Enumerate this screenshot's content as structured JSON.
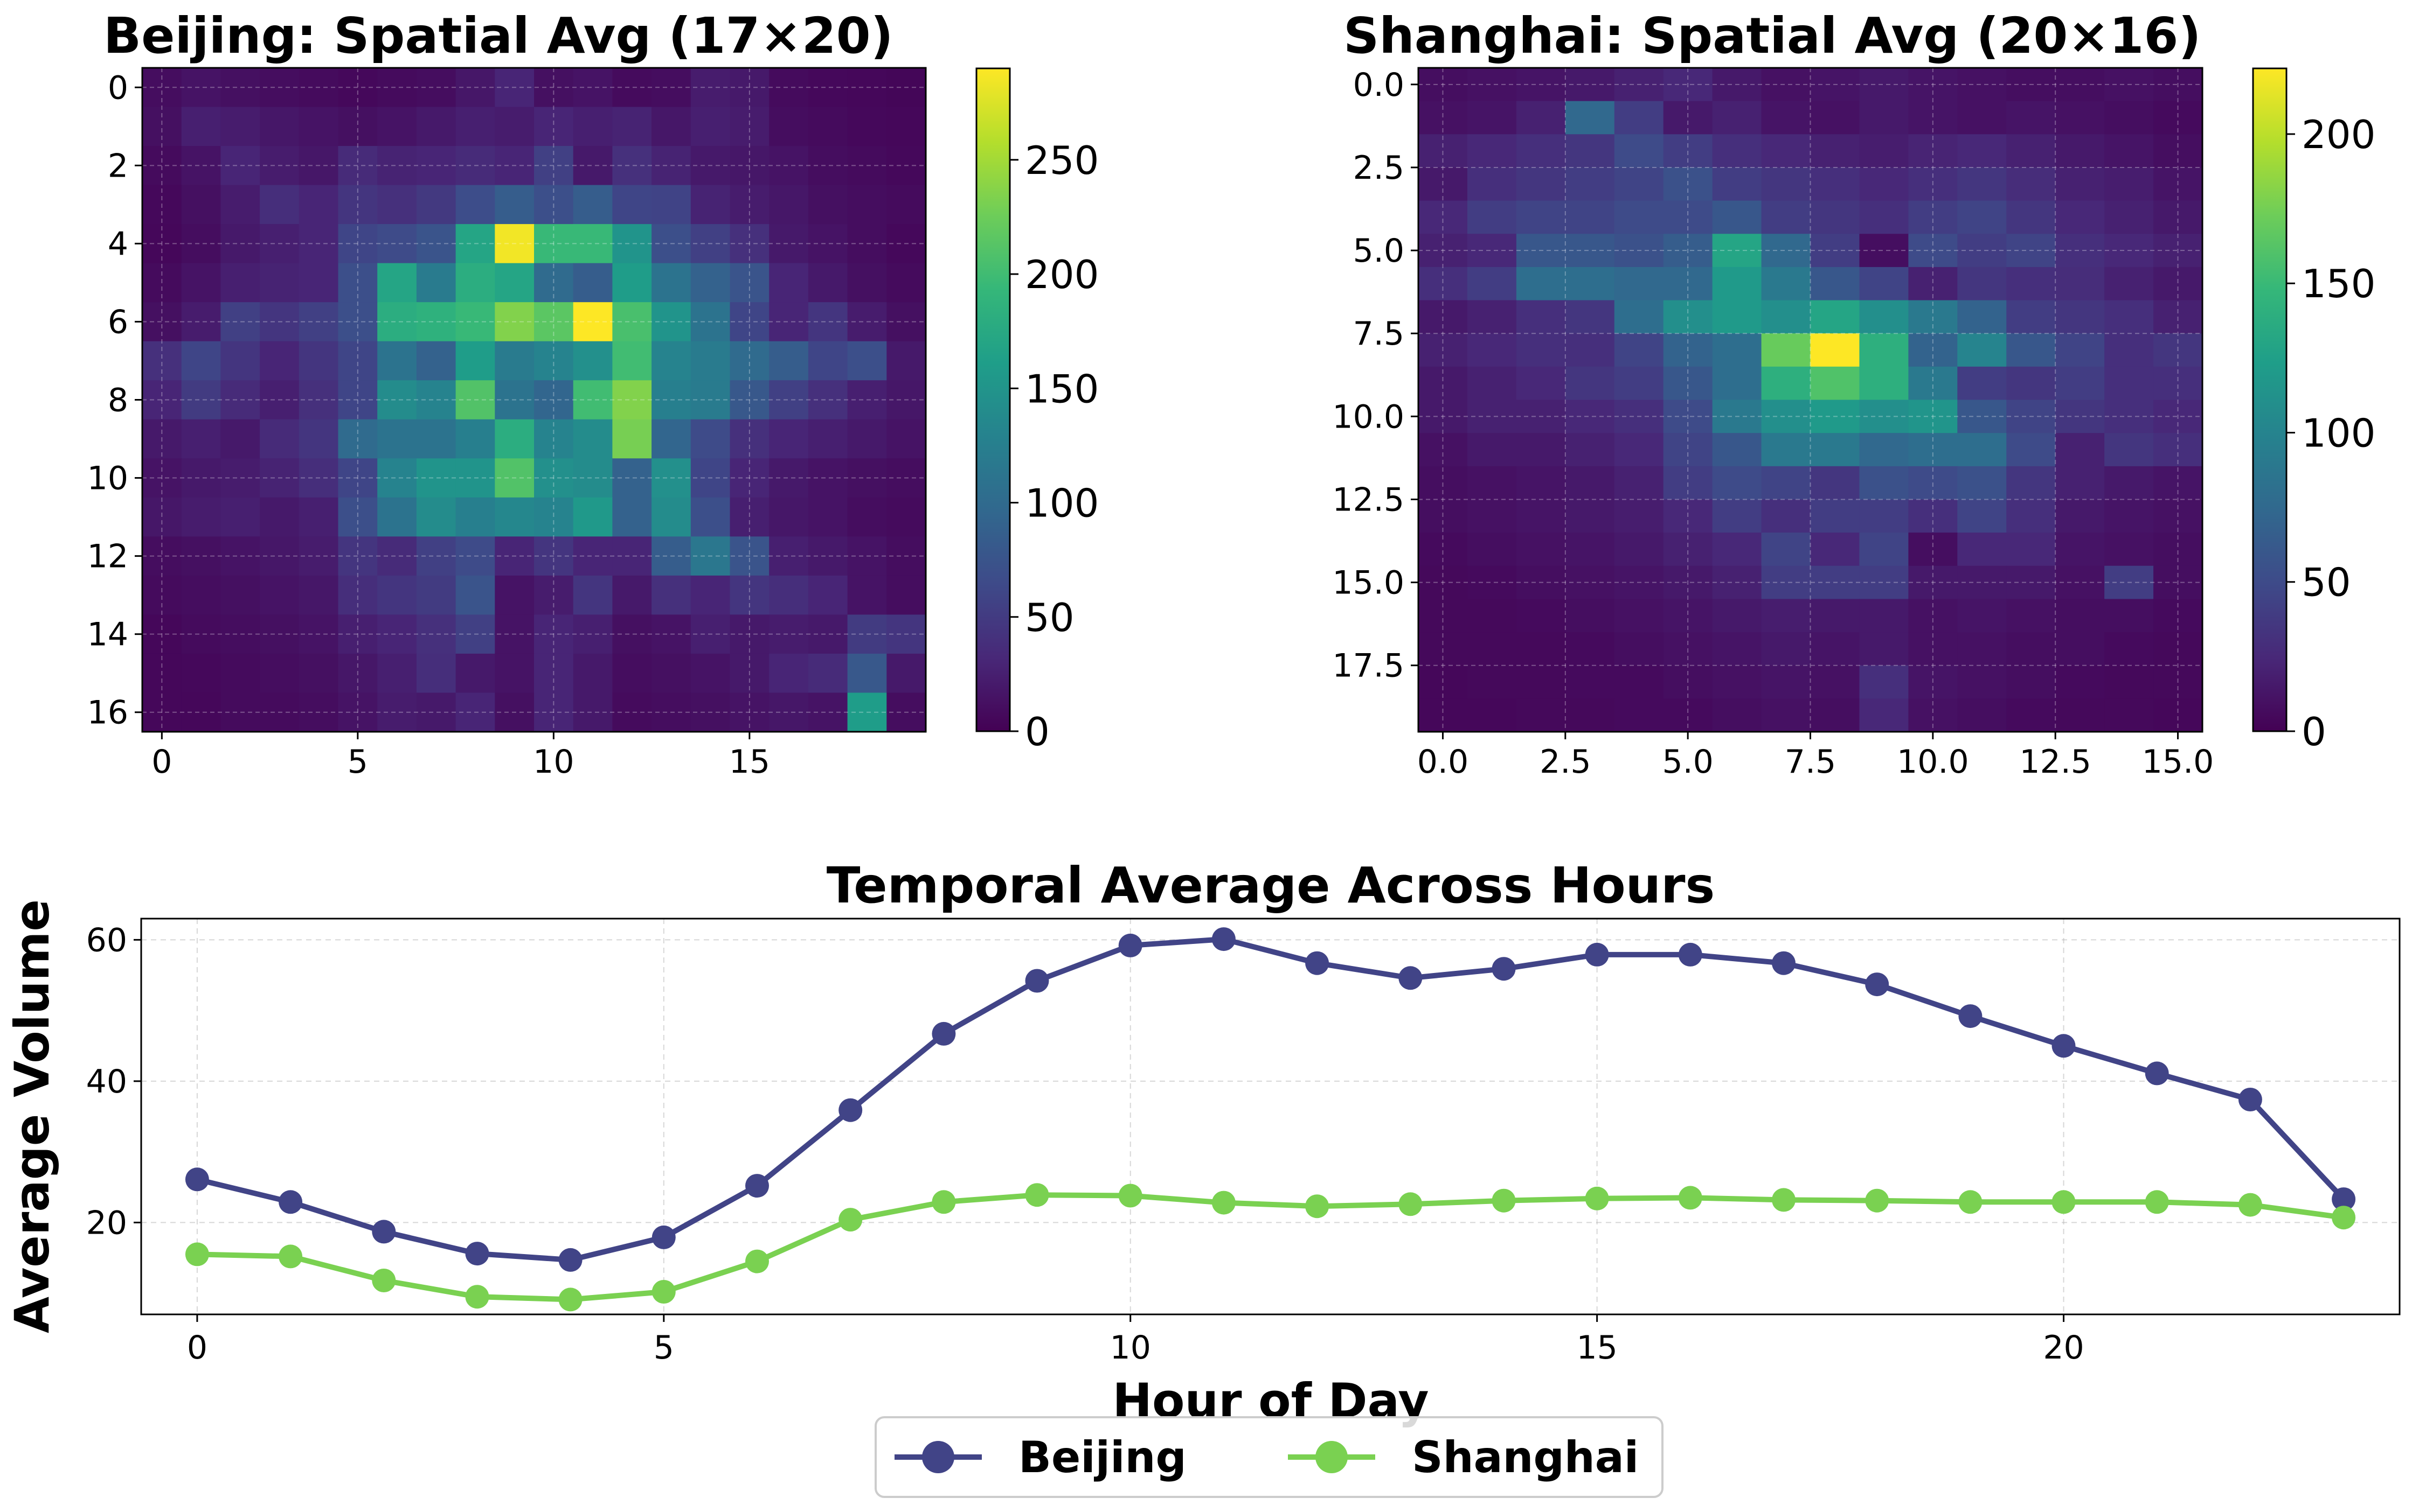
{
  "chart_data": [
    {
      "type": "heatmap",
      "title": "Beijing: Spatial Avg (17×20)",
      "rows": 17,
      "cols": 20,
      "colormap": "viridis",
      "vmin": 0,
      "vmax": 290,
      "xticks": [
        0,
        5,
        10,
        15
      ],
      "xtick_labels": [
        "0",
        "5",
        "10",
        "15"
      ],
      "yticks": [
        0,
        2,
        4,
        6,
        8,
        10,
        12,
        14,
        16
      ],
      "ytick_labels": [
        "0",
        "2",
        "4",
        "6",
        "8",
        "10",
        "12",
        "14",
        "16"
      ],
      "colorbar_ticks": [
        0,
        50,
        100,
        150,
        200,
        250
      ],
      "colorbar_labels": [
        "0",
        "50",
        "100",
        "150",
        "200",
        "250"
      ],
      "grid": true,
      "values": [
        [
          10,
          15,
          12,
          10,
          8,
          6,
          8,
          10,
          18,
          30,
          12,
          15,
          8,
          10,
          22,
          20,
          8,
          6,
          5,
          4
        ],
        [
          12,
          25,
          22,
          18,
          15,
          12,
          15,
          20,
          25,
          22,
          30,
          25,
          28,
          18,
          25,
          22,
          10,
          8,
          6,
          5
        ],
        [
          8,
          15,
          30,
          22,
          18,
          35,
          28,
          30,
          35,
          30,
          55,
          20,
          40,
          28,
          20,
          18,
          15,
          10,
          8,
          6
        ],
        [
          6,
          12,
          22,
          38,
          30,
          45,
          40,
          48,
          68,
          85,
          70,
          85,
          60,
          58,
          28,
          22,
          18,
          12,
          10,
          8
        ],
        [
          5,
          10,
          20,
          25,
          30,
          60,
          65,
          75,
          170,
          285,
          195,
          195,
          150,
          70,
          55,
          40,
          20,
          15,
          10,
          6
        ],
        [
          8,
          15,
          25,
          28,
          30,
          70,
          170,
          120,
          180,
          170,
          100,
          85,
          160,
          110,
          90,
          75,
          30,
          20,
          12,
          8
        ],
        [
          12,
          22,
          55,
          45,
          55,
          70,
          180,
          185,
          195,
          235,
          215,
          290,
          205,
          150,
          110,
          60,
          30,
          45,
          22,
          12
        ],
        [
          40,
          60,
          45,
          30,
          45,
          60,
          110,
          90,
          160,
          120,
          130,
          145,
          200,
          130,
          120,
          100,
          85,
          60,
          70,
          20
        ],
        [
          30,
          50,
          35,
          25,
          40,
          60,
          140,
          130,
          210,
          110,
          95,
          200,
          235,
          125,
          120,
          80,
          55,
          40,
          25,
          18
        ],
        [
          20,
          25,
          20,
          35,
          45,
          100,
          110,
          110,
          125,
          180,
          130,
          140,
          230,
          95,
          65,
          40,
          30,
          25,
          20,
          15
        ],
        [
          15,
          20,
          22,
          28,
          38,
          60,
          130,
          150,
          150,
          210,
          145,
          140,
          90,
          145,
          60,
          30,
          20,
          15,
          12,
          10
        ],
        [
          18,
          22,
          25,
          20,
          25,
          70,
          110,
          140,
          125,
          135,
          130,
          155,
          90,
          140,
          70,
          25,
          18,
          15,
          10,
          8
        ],
        [
          10,
          12,
          15,
          18,
          22,
          45,
          35,
          55,
          65,
          30,
          45,
          30,
          30,
          85,
          115,
          75,
          25,
          20,
          15,
          10
        ],
        [
          8,
          10,
          12,
          15,
          18,
          38,
          45,
          50,
          75,
          15,
          22,
          45,
          20,
          40,
          30,
          45,
          38,
          30,
          15,
          10
        ],
        [
          5,
          8,
          10,
          12,
          15,
          25,
          30,
          40,
          55,
          15,
          30,
          25,
          12,
          15,
          25,
          20,
          22,
          20,
          50,
          45
        ],
        [
          5,
          6,
          8,
          10,
          12,
          18,
          25,
          38,
          20,
          15,
          30,
          20,
          10,
          12,
          15,
          20,
          30,
          35,
          80,
          20
        ],
        [
          5,
          5,
          8,
          8,
          10,
          15,
          22,
          20,
          30,
          12,
          30,
          20,
          8,
          10,
          12,
          15,
          18,
          15,
          160,
          10
        ]
      ]
    },
    {
      "type": "heatmap",
      "title": "Shanghai: Spatial Avg (20×16)",
      "rows": 20,
      "cols": 16,
      "colormap": "viridis",
      "vmin": 0,
      "vmax": 222,
      "xticks": [
        0,
        2.5,
        5,
        7.5,
        10,
        12.5,
        15
      ],
      "xtick_labels": [
        "0.0",
        "2.5",
        "5.0",
        "7.5",
        "10.0",
        "12.5",
        "15.0"
      ],
      "yticks": [
        0,
        2.5,
        5,
        7.5,
        10,
        12.5,
        15,
        17.5
      ],
      "ytick_labels": [
        "0.0",
        "2.5",
        "5.0",
        "7.5",
        "10.0",
        "12.5",
        "15.0",
        "17.5"
      ],
      "colorbar_ticks": [
        0,
        50,
        100,
        150,
        200
      ],
      "colorbar_labels": [
        "0",
        "50",
        "100",
        "150",
        "200"
      ],
      "grid": true,
      "values": [
        [
          8,
          10,
          12,
          15,
          20,
          25,
          15,
          10,
          12,
          15,
          12,
          10,
          8,
          8,
          10,
          8
        ],
        [
          10,
          12,
          20,
          75,
          40,
          15,
          20,
          12,
          10,
          15,
          12,
          10,
          12,
          10,
          8,
          6
        ],
        [
          20,
          25,
          30,
          35,
          50,
          40,
          30,
          25,
          20,
          18,
          22,
          25,
          20,
          15,
          12,
          8
        ],
        [
          15,
          30,
          35,
          40,
          45,
          55,
          40,
          35,
          30,
          25,
          30,
          35,
          28,
          20,
          18,
          12
        ],
        [
          25,
          40,
          45,
          45,
          50,
          50,
          60,
          40,
          35,
          30,
          40,
          45,
          35,
          25,
          20,
          15
        ],
        [
          20,
          25,
          60,
          60,
          55,
          65,
          130,
          75,
          40,
          8,
          50,
          40,
          45,
          30,
          25,
          20
        ],
        [
          30,
          40,
          80,
          80,
          75,
          75,
          120,
          90,
          60,
          45,
          20,
          35,
          30,
          28,
          20,
          15
        ],
        [
          15,
          20,
          30,
          35,
          80,
          110,
          120,
          110,
          130,
          110,
          90,
          70,
          40,
          35,
          30,
          20
        ],
        [
          20,
          25,
          30,
          30,
          45,
          70,
          80,
          170,
          222,
          140,
          70,
          100,
          60,
          45,
          30,
          35
        ],
        [
          15,
          20,
          25,
          35,
          40,
          60,
          80,
          140,
          160,
          140,
          90,
          40,
          35,
          40,
          30,
          30
        ],
        [
          15,
          20,
          20,
          25,
          30,
          50,
          90,
          110,
          120,
          110,
          115,
          60,
          45,
          35,
          30,
          25
        ],
        [
          10,
          15,
          15,
          20,
          25,
          45,
          60,
          90,
          90,
          75,
          80,
          80,
          50,
          20,
          35,
          30
        ],
        [
          8,
          10,
          12,
          15,
          20,
          40,
          50,
          45,
          35,
          55,
          50,
          55,
          35,
          20,
          15,
          12
        ],
        [
          8,
          10,
          12,
          15,
          18,
          25,
          40,
          30,
          40,
          40,
          30,
          45,
          30,
          15,
          12,
          10
        ],
        [
          6,
          8,
          10,
          12,
          15,
          20,
          25,
          45,
          25,
          45,
          8,
          25,
          25,
          12,
          10,
          8
        ],
        [
          5,
          6,
          8,
          10,
          12,
          15,
          20,
          40,
          40,
          40,
          15,
          15,
          15,
          10,
          40,
          8
        ],
        [
          5,
          5,
          6,
          8,
          10,
          12,
          15,
          18,
          15,
          15,
          10,
          12,
          10,
          8,
          8,
          6
        ],
        [
          5,
          5,
          5,
          6,
          8,
          10,
          12,
          15,
          12,
          15,
          10,
          10,
          8,
          8,
          6,
          5
        ],
        [
          4,
          5,
          5,
          6,
          6,
          8,
          10,
          12,
          10,
          30,
          12,
          10,
          8,
          6,
          5,
          5
        ],
        [
          4,
          4,
          5,
          5,
          6,
          6,
          8,
          10,
          8,
          25,
          10,
          8,
          6,
          5,
          5,
          4
        ]
      ]
    },
    {
      "type": "line",
      "title": "Temporal Average Across Hours",
      "xlabel": "Hour of Day",
      "ylabel": "Average Volume",
      "x": [
        0,
        1,
        2,
        3,
        4,
        5,
        6,
        7,
        8,
        9,
        10,
        11,
        12,
        13,
        14,
        15,
        16,
        17,
        18,
        19,
        20,
        21,
        22,
        23
      ],
      "xlim": [
        -0.6,
        23.6
      ],
      "ylim": [
        7,
        63
      ],
      "xticks": [
        0,
        5,
        10,
        15,
        20
      ],
      "xtick_labels": [
        "0",
        "5",
        "10",
        "15",
        "20"
      ],
      "yticks": [
        20,
        40,
        60
      ],
      "ytick_labels": [
        "20",
        "40",
        "60"
      ],
      "grid": true,
      "legend_position": "bottom-center",
      "series": [
        {
          "name": "Beijing",
          "color": "#414487",
          "values": [
            26.1,
            22.9,
            18.7,
            15.6,
            14.7,
            17.9,
            25.2,
            35.9,
            46.7,
            54.2,
            59.2,
            60.1,
            56.7,
            54.6,
            55.9,
            57.9,
            57.9,
            56.7,
            53.7,
            49.2,
            45.0,
            41.1,
            37.4,
            23.3
          ]
        },
        {
          "name": "Shanghai",
          "color": "#7AD151",
          "values": [
            15.5,
            15.2,
            11.8,
            9.5,
            9.1,
            10.2,
            14.5,
            20.4,
            22.9,
            23.9,
            23.8,
            22.8,
            22.3,
            22.6,
            23.1,
            23.4,
            23.5,
            23.2,
            23.1,
            22.9,
            22.9,
            22.9,
            22.5,
            20.7
          ]
        }
      ]
    }
  ]
}
